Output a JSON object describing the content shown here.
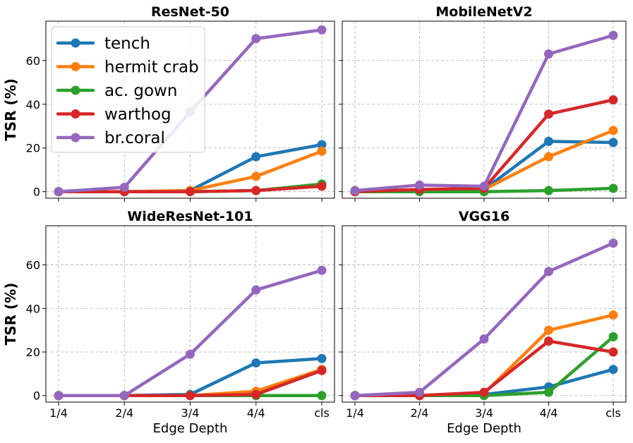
{
  "chart_data": [
    {
      "type": "line",
      "title": "ResNet-50",
      "ylabel": "TSR (%)",
      "xlabel": "",
      "categories": [
        "1/4",
        "2/4",
        "3/4",
        "4/4",
        "cls"
      ],
      "ylim": [
        -3,
        78
      ],
      "yticks": [
        0,
        20,
        40,
        60
      ],
      "grid": true,
      "legend": "upper-left",
      "series": [
        {
          "name": "tench",
          "color": "#1f77b4",
          "values": [
            0,
            0,
            0.5,
            16,
            21.5
          ]
        },
        {
          "name": "hermit crab",
          "color": "#ff7f0e",
          "values": [
            0,
            0,
            0.5,
            7,
            18.5
          ]
        },
        {
          "name": "ac. gown",
          "color": "#2ca02c",
          "values": [
            0,
            0,
            0,
            0.5,
            3.5
          ]
        },
        {
          "name": "warthog",
          "color": "#d62728",
          "values": [
            0,
            0,
            0,
            0.5,
            2.5
          ]
        },
        {
          "name": "br.coral",
          "color": "#9467bd",
          "values": [
            0,
            2,
            36.5,
            70,
            74
          ]
        }
      ]
    },
    {
      "type": "line",
      "title": "MobileNetV2",
      "ylabel": "",
      "xlabel": "",
      "categories": [
        "1/4",
        "2/4",
        "3/4",
        "4/4",
        "cls"
      ],
      "ylim": [
        -3,
        78
      ],
      "yticks": [
        0,
        20,
        40,
        60
      ],
      "grid": true,
      "series": [
        {
          "name": "tench",
          "color": "#1f77b4",
          "values": [
            0,
            0.5,
            1,
            23,
            22.5
          ]
        },
        {
          "name": "hermit crab",
          "color": "#ff7f0e",
          "values": [
            0,
            0.5,
            1,
            16,
            28
          ]
        },
        {
          "name": "ac. gown",
          "color": "#2ca02c",
          "values": [
            0,
            0,
            0,
            0.5,
            1.5
          ]
        },
        {
          "name": "warthog",
          "color": "#d62728",
          "values": [
            0,
            1,
            1.5,
            35.5,
            42
          ]
        },
        {
          "name": "br.coral",
          "color": "#9467bd",
          "values": [
            0.5,
            3,
            2.5,
            63,
            71.5
          ]
        }
      ]
    },
    {
      "type": "line",
      "title": "WideResNet-101",
      "ylabel": "TSR (%)",
      "xlabel": "Edge Depth",
      "categories": [
        "1/4",
        "2/4",
        "3/4",
        "4/4",
        "cls"
      ],
      "ylim": [
        -3,
        78
      ],
      "yticks": [
        0,
        20,
        40,
        60
      ],
      "grid": true,
      "series": [
        {
          "name": "tench",
          "color": "#1f77b4",
          "values": [
            0,
            0,
            0.5,
            15,
            17
          ]
        },
        {
          "name": "hermit crab",
          "color": "#ff7f0e",
          "values": [
            0,
            0,
            0,
            2,
            12
          ]
        },
        {
          "name": "ac. gown",
          "color": "#2ca02c",
          "values": [
            0,
            0,
            0,
            0,
            0
          ]
        },
        {
          "name": "warthog",
          "color": "#d62728",
          "values": [
            0,
            0,
            0,
            0.5,
            11.5
          ]
        },
        {
          "name": "br.coral",
          "color": "#9467bd",
          "values": [
            0,
            0,
            19,
            48.5,
            57.5
          ]
        }
      ]
    },
    {
      "type": "line",
      "title": "VGG16",
      "ylabel": "",
      "xlabel": "Edge Depth",
      "categories": [
        "1/4",
        "2/4",
        "3/4",
        "4/4",
        "cls"
      ],
      "ylim": [
        -3,
        78
      ],
      "yticks": [
        0,
        20,
        40,
        60
      ],
      "grid": true,
      "series": [
        {
          "name": "tench",
          "color": "#1f77b4",
          "values": [
            0,
            0,
            0.5,
            4,
            12
          ]
        },
        {
          "name": "hermit crab",
          "color": "#ff7f0e",
          "values": [
            0,
            0,
            1,
            30,
            37
          ]
        },
        {
          "name": "ac. gown",
          "color": "#2ca02c",
          "values": [
            0,
            0,
            0,
            1.5,
            27
          ]
        },
        {
          "name": "warthog",
          "color": "#d62728",
          "values": [
            0,
            0,
            1.5,
            25,
            20
          ]
        },
        {
          "name": "br.coral",
          "color": "#9467bd",
          "values": [
            0,
            1.5,
            26,
            57,
            70
          ]
        }
      ]
    }
  ]
}
